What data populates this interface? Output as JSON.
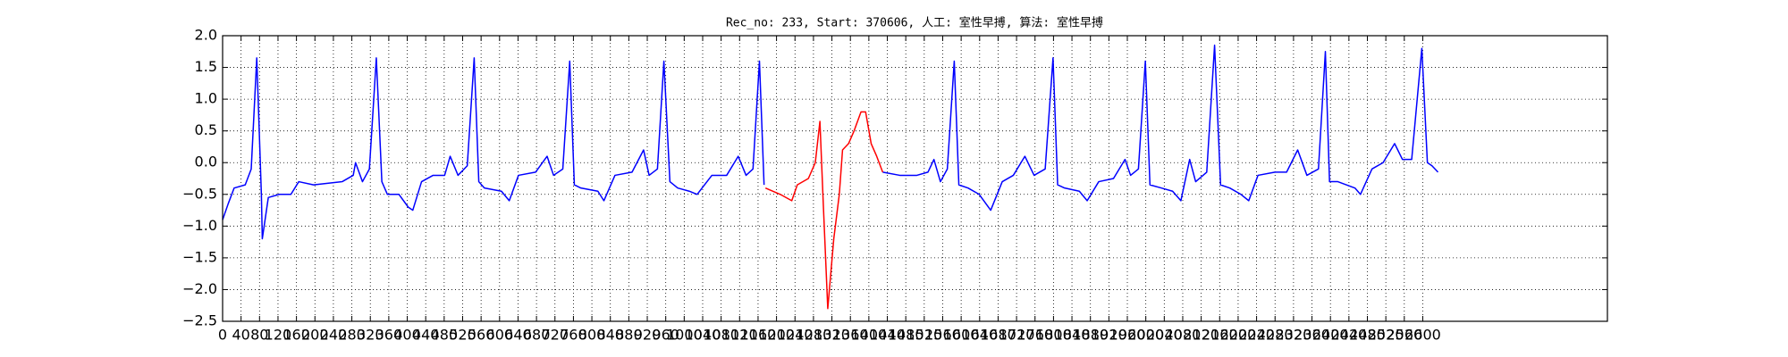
{
  "chart_data": {
    "type": "line",
    "title": "Rec_no: 233, Start: 370606, 人工: 室性早搏, 算法: 室性早搏",
    "xlim": [
      0,
      3000
    ],
    "xticks": [
      0,
      40,
      80,
      120,
      160,
      200,
      240,
      280,
      320,
      360,
      400,
      440,
      480,
      520,
      560,
      600,
      640,
      680,
      720,
      760,
      800,
      840,
      880,
      920,
      960,
      1000,
      1040,
      1080,
      1120,
      1160,
      1200,
      1240,
      1280,
      1320,
      1360,
      1400,
      1440,
      1480,
      1520,
      1560,
      1600,
      1640,
      1680,
      1720,
      1760,
      1800,
      1840,
      1880,
      1920,
      1960,
      2000,
      2040,
      2080,
      2120,
      2160,
      2200,
      2240,
      2280,
      2320,
      2360,
      2400,
      2440,
      2480,
      2520,
      2560,
      2600
    ],
    "ylim": [
      -2.5,
      2.0
    ],
    "yticks": [
      {
        "value": -2.5,
        "label": "−2.5"
      },
      {
        "value": -2.0,
        "label": "−2.0"
      },
      {
        "value": -1.5,
        "label": "−1.5"
      },
      {
        "value": -1.0,
        "label": "−1.0"
      },
      {
        "value": -0.5,
        "label": "−0.5"
      },
      {
        "value": 0,
        "label": "0.0"
      },
      {
        "value": 0.5,
        "label": "0.5"
      },
      {
        "value": 1.0,
        "label": "1.0"
      },
      {
        "value": 1.5,
        "label": "1.5"
      },
      {
        "value": 2.0,
        "label": "2.0"
      }
    ],
    "grid": true,
    "series": [
      {
        "color": "#0000ff",
        "x": [
          0,
          12,
          25,
          49,
          62,
          74,
          84,
          86,
          99,
          123,
          148,
          165,
          197,
          259,
          283,
          288,
          303,
          318,
          333,
          345,
          357,
          382,
          402,
          412,
          431,
          456,
          481,
          493,
          510,
          530,
          545,
          555,
          567,
          604,
          621,
          641,
          678,
          703,
          717,
          737,
          752,
          762,
          776,
          813,
          826,
          850,
          887,
          912,
          924,
          942,
          956,
          969,
          986,
          1011,
          1028,
          1060,
          1092,
          1117,
          1134,
          1149,
          1163,
          1173,
          1300,
          1430,
          1467,
          1504,
          1528,
          1541,
          1555,
          1570,
          1585,
          1595,
          1615,
          1639,
          1664,
          1689,
          1713,
          1738,
          1758,
          1782,
          1799,
          1809,
          1824,
          1856,
          1873,
          1898,
          1930,
          1955,
          1967,
          1984,
          1999,
          2009,
          2034,
          2058,
          2076,
          2095,
          2108,
          2132,
          2149,
          2162,
          2182,
          2206,
          2223,
          2243,
          2280,
          2305,
          2329,
          2349,
          2374,
          2389,
          2398,
          2416,
          2453,
          2465,
          2490,
          2514,
          2539,
          2556,
          2576,
          2598,
          2610,
          2620,
          2633
        ],
        "values": [
          -0.9,
          -0.65,
          -0.4,
          -0.35,
          -0.1,
          1.65,
          -0.5,
          -1.2,
          -0.55,
          -0.5,
          -0.5,
          -0.3,
          -0.35,
          -0.3,
          -0.2,
          0.0,
          -0.3,
          -0.1,
          1.65,
          -0.3,
          -0.5,
          -0.5,
          -0.7,
          -0.75,
          -0.3,
          -0.2,
          -0.2,
          0.1,
          -0.2,
          -0.05,
          1.65,
          -0.3,
          -0.4,
          -0.45,
          -0.6,
          -0.2,
          -0.15,
          0.1,
          -0.2,
          -0.1,
          1.6,
          -0.35,
          -0.4,
          -0.45,
          -0.6,
          -0.2,
          -0.15,
          0.2,
          -0.2,
          -0.1,
          1.6,
          -0.3,
          -0.4,
          -0.45,
          -0.5,
          -0.2,
          -0.2,
          0.1,
          -0.2,
          -0.1,
          1.6,
          -0.35,
          null,
          -0.15,
          -0.2,
          -0.2,
          -0.15,
          0.05,
          -0.3,
          -0.1,
          1.6,
          -0.35,
          -0.4,
          -0.5,
          -0.75,
          -0.3,
          -0.2,
          0.1,
          -0.2,
          -0.1,
          1.65,
          -0.35,
          -0.4,
          -0.45,
          -0.6,
          -0.3,
          -0.25,
          0.05,
          -0.2,
          -0.1,
          1.6,
          -0.35,
          -0.4,
          -0.45,
          -0.6,
          0.05,
          -0.3,
          -0.15,
          1.85,
          -0.35,
          -0.4,
          -0.5,
          -0.6,
          -0.2,
          -0.15,
          -0.15,
          0.2,
          -0.2,
          -0.1,
          1.75,
          -0.3,
          -0.3,
          -0.4,
          -0.5,
          -0.1,
          0.0,
          0.3,
          0.05,
          0.05,
          1.8,
          0.0,
          -0.05,
          -0.15
        ]
      },
      {
        "color": "#ff0000",
        "x": [
          1176,
          1208,
          1233,
          1245,
          1269,
          1284,
          1294,
          1301,
          1311,
          1324,
          1336,
          1343,
          1356,
          1368,
          1383,
          1393,
          1405,
          1417,
          1430
        ],
        "values": [
          -0.4,
          -0.5,
          -0.6,
          -0.35,
          -0.25,
          0.0,
          0.65,
          -0.6,
          -2.3,
          -1.2,
          -0.5,
          0.2,
          0.3,
          0.5,
          0.8,
          0.8,
          0.3,
          0.1,
          -0.15
        ]
      }
    ]
  }
}
